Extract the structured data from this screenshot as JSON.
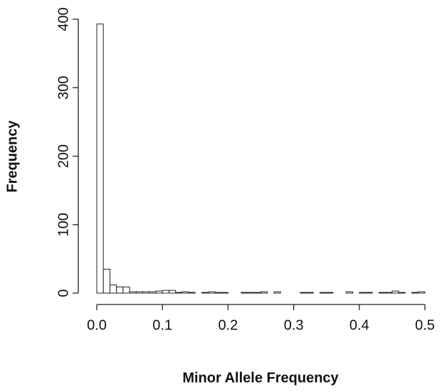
{
  "chart_data": {
    "type": "histogram",
    "x_label": "Minor Allele Frequency",
    "y_label": "Frequency",
    "bins": [
      0,
      0.01,
      0.02,
      0.03,
      0.04,
      0.05,
      0.06,
      0.07,
      0.08,
      0.09,
      0.1,
      0.11,
      0.12,
      0.13,
      0.14,
      0.15,
      0.16,
      0.17,
      0.18,
      0.19,
      0.2,
      0.21,
      0.22,
      0.23,
      0.24,
      0.25,
      0.26,
      0.27,
      0.28,
      0.29,
      0.3,
      0.31,
      0.32,
      0.33,
      0.34,
      0.35,
      0.36,
      0.37,
      0.38,
      0.39,
      0.4,
      0.41,
      0.42,
      0.43,
      0.44,
      0.45,
      0.46,
      0.47,
      0.48,
      0.49,
      0.5
    ],
    "counts": [
      393,
      35,
      12,
      9,
      9,
      2,
      2,
      2,
      2,
      3,
      4,
      4,
      1,
      2,
      1,
      0,
      1,
      2,
      1,
      1,
      0,
      0,
      1,
      1,
      1,
      2,
      0,
      2,
      0,
      0,
      0,
      1,
      1,
      0,
      1,
      1,
      0,
      0,
      2,
      0,
      1,
      1,
      0,
      1,
      1,
      3,
      1,
      0,
      1,
      2
    ],
    "color": "#ffffff",
    "edge_color": "#222222",
    "xlim": [
      0,
      0.5
    ],
    "xticks": [
      {
        "value": 0,
        "label": "0.0"
      },
      0.1,
      0.2,
      0.3,
      0.4,
      0.5
    ],
    "ylim": [
      0,
      400
    ],
    "yticks": [
      0,
      100,
      200,
      300,
      400
    ]
  }
}
